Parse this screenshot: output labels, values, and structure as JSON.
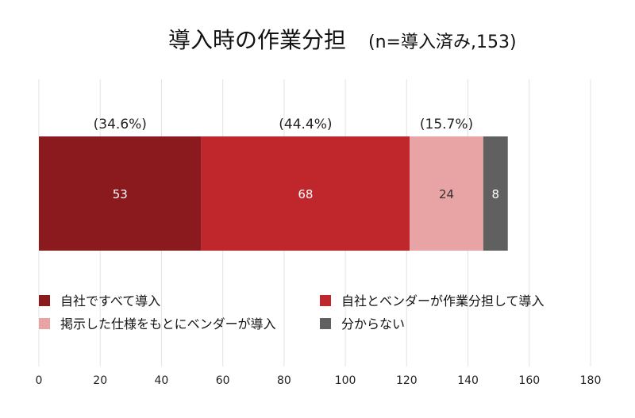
{
  "chart_data": {
    "type": "bar",
    "orientation": "horizontal",
    "stacked": true,
    "title": "導入時の作業分担",
    "subtitle": "(n=導入済み,153)",
    "xlim": [
      0,
      180
    ],
    "xticks": [
      0,
      20,
      40,
      60,
      80,
      100,
      120,
      140,
      160,
      180
    ],
    "grid": true,
    "legend_position": "bottom",
    "series": [
      {
        "name": "自社ですべて導入",
        "value": 53,
        "percent_label": "(34.6%)",
        "color": "#8B1A1E",
        "label_color": "#ffffff"
      },
      {
        "name": "自社とベンダーが作業分担して導入",
        "value": 68,
        "percent_label": "(44.4%)",
        "color": "#C0272D",
        "label_color": "#ffffff"
      },
      {
        "name": "掲示した仕様をもとにベンダーが導入",
        "value": 24,
        "percent_label": "(15.7%)",
        "color": "#E8A4A4",
        "label_color": "#333333"
      },
      {
        "name": "分からない",
        "value": 8,
        "percent_label": "",
        "color": "#606060",
        "label_color": "#ffffff"
      }
    ]
  }
}
